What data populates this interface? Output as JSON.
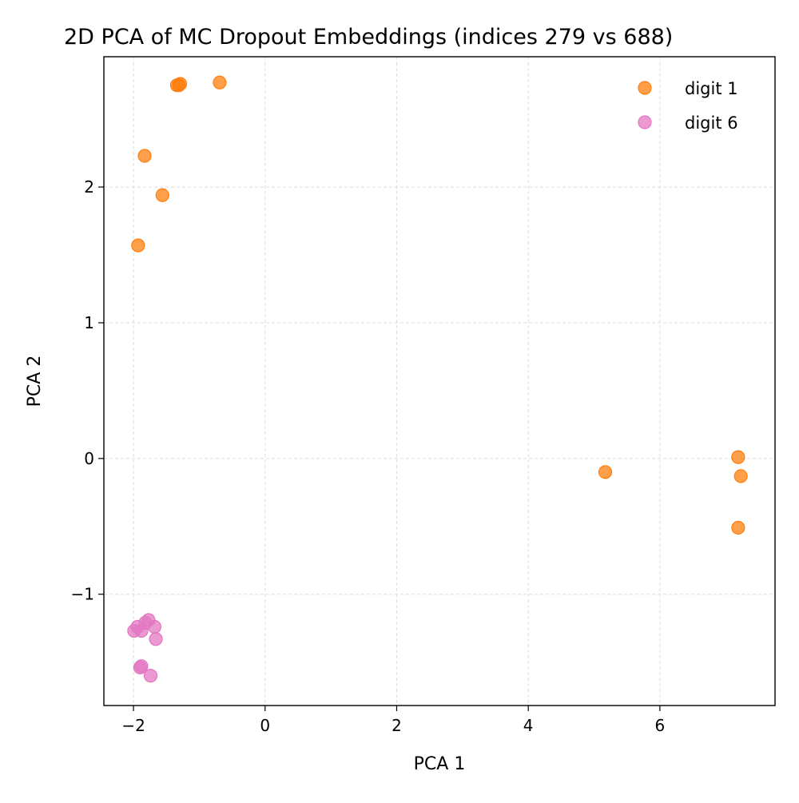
{
  "chart_data": {
    "type": "scatter",
    "title": "2D PCA of MC Dropout Embeddings (indices 279 vs 688)",
    "xlabel": "PCA 1",
    "ylabel": "PCA 2",
    "xlim": [
      -2.45,
      7.75
    ],
    "ylim": [
      -1.82,
      2.96
    ],
    "xticks": [
      -2,
      0,
      2,
      4,
      6
    ],
    "xtick_labels": [
      "−2",
      "0",
      "2",
      "4",
      "6"
    ],
    "yticks": [
      -1,
      0,
      1,
      2
    ],
    "ytick_labels": [
      "−1",
      "0",
      "1",
      "2"
    ],
    "grid": true,
    "legend_position": "top-right",
    "series": [
      {
        "name": "digit 1",
        "color": "#ff7f0e",
        "points": [
          [
            -1.34,
            2.75
          ],
          [
            -1.31,
            2.75
          ],
          [
            -1.29,
            2.76
          ],
          [
            -0.69,
            2.77
          ],
          [
            -1.83,
            2.23
          ],
          [
            -1.56,
            1.94
          ],
          [
            -1.93,
            1.57
          ],
          [
            5.17,
            -0.1
          ],
          [
            7.19,
            0.01
          ],
          [
            7.23,
            -0.13
          ],
          [
            7.19,
            -0.51
          ]
        ]
      },
      {
        "name": "digit 6",
        "color": "#e377c2",
        "points": [
          [
            -1.99,
            -1.27
          ],
          [
            -1.94,
            -1.24
          ],
          [
            -1.88,
            -1.27
          ],
          [
            -1.82,
            -1.21
          ],
          [
            -1.77,
            -1.19
          ],
          [
            -1.68,
            -1.24
          ],
          [
            -1.66,
            -1.33
          ],
          [
            -1.9,
            -1.54
          ],
          [
            -1.88,
            -1.53
          ],
          [
            -1.74,
            -1.6
          ]
        ]
      }
    ]
  }
}
